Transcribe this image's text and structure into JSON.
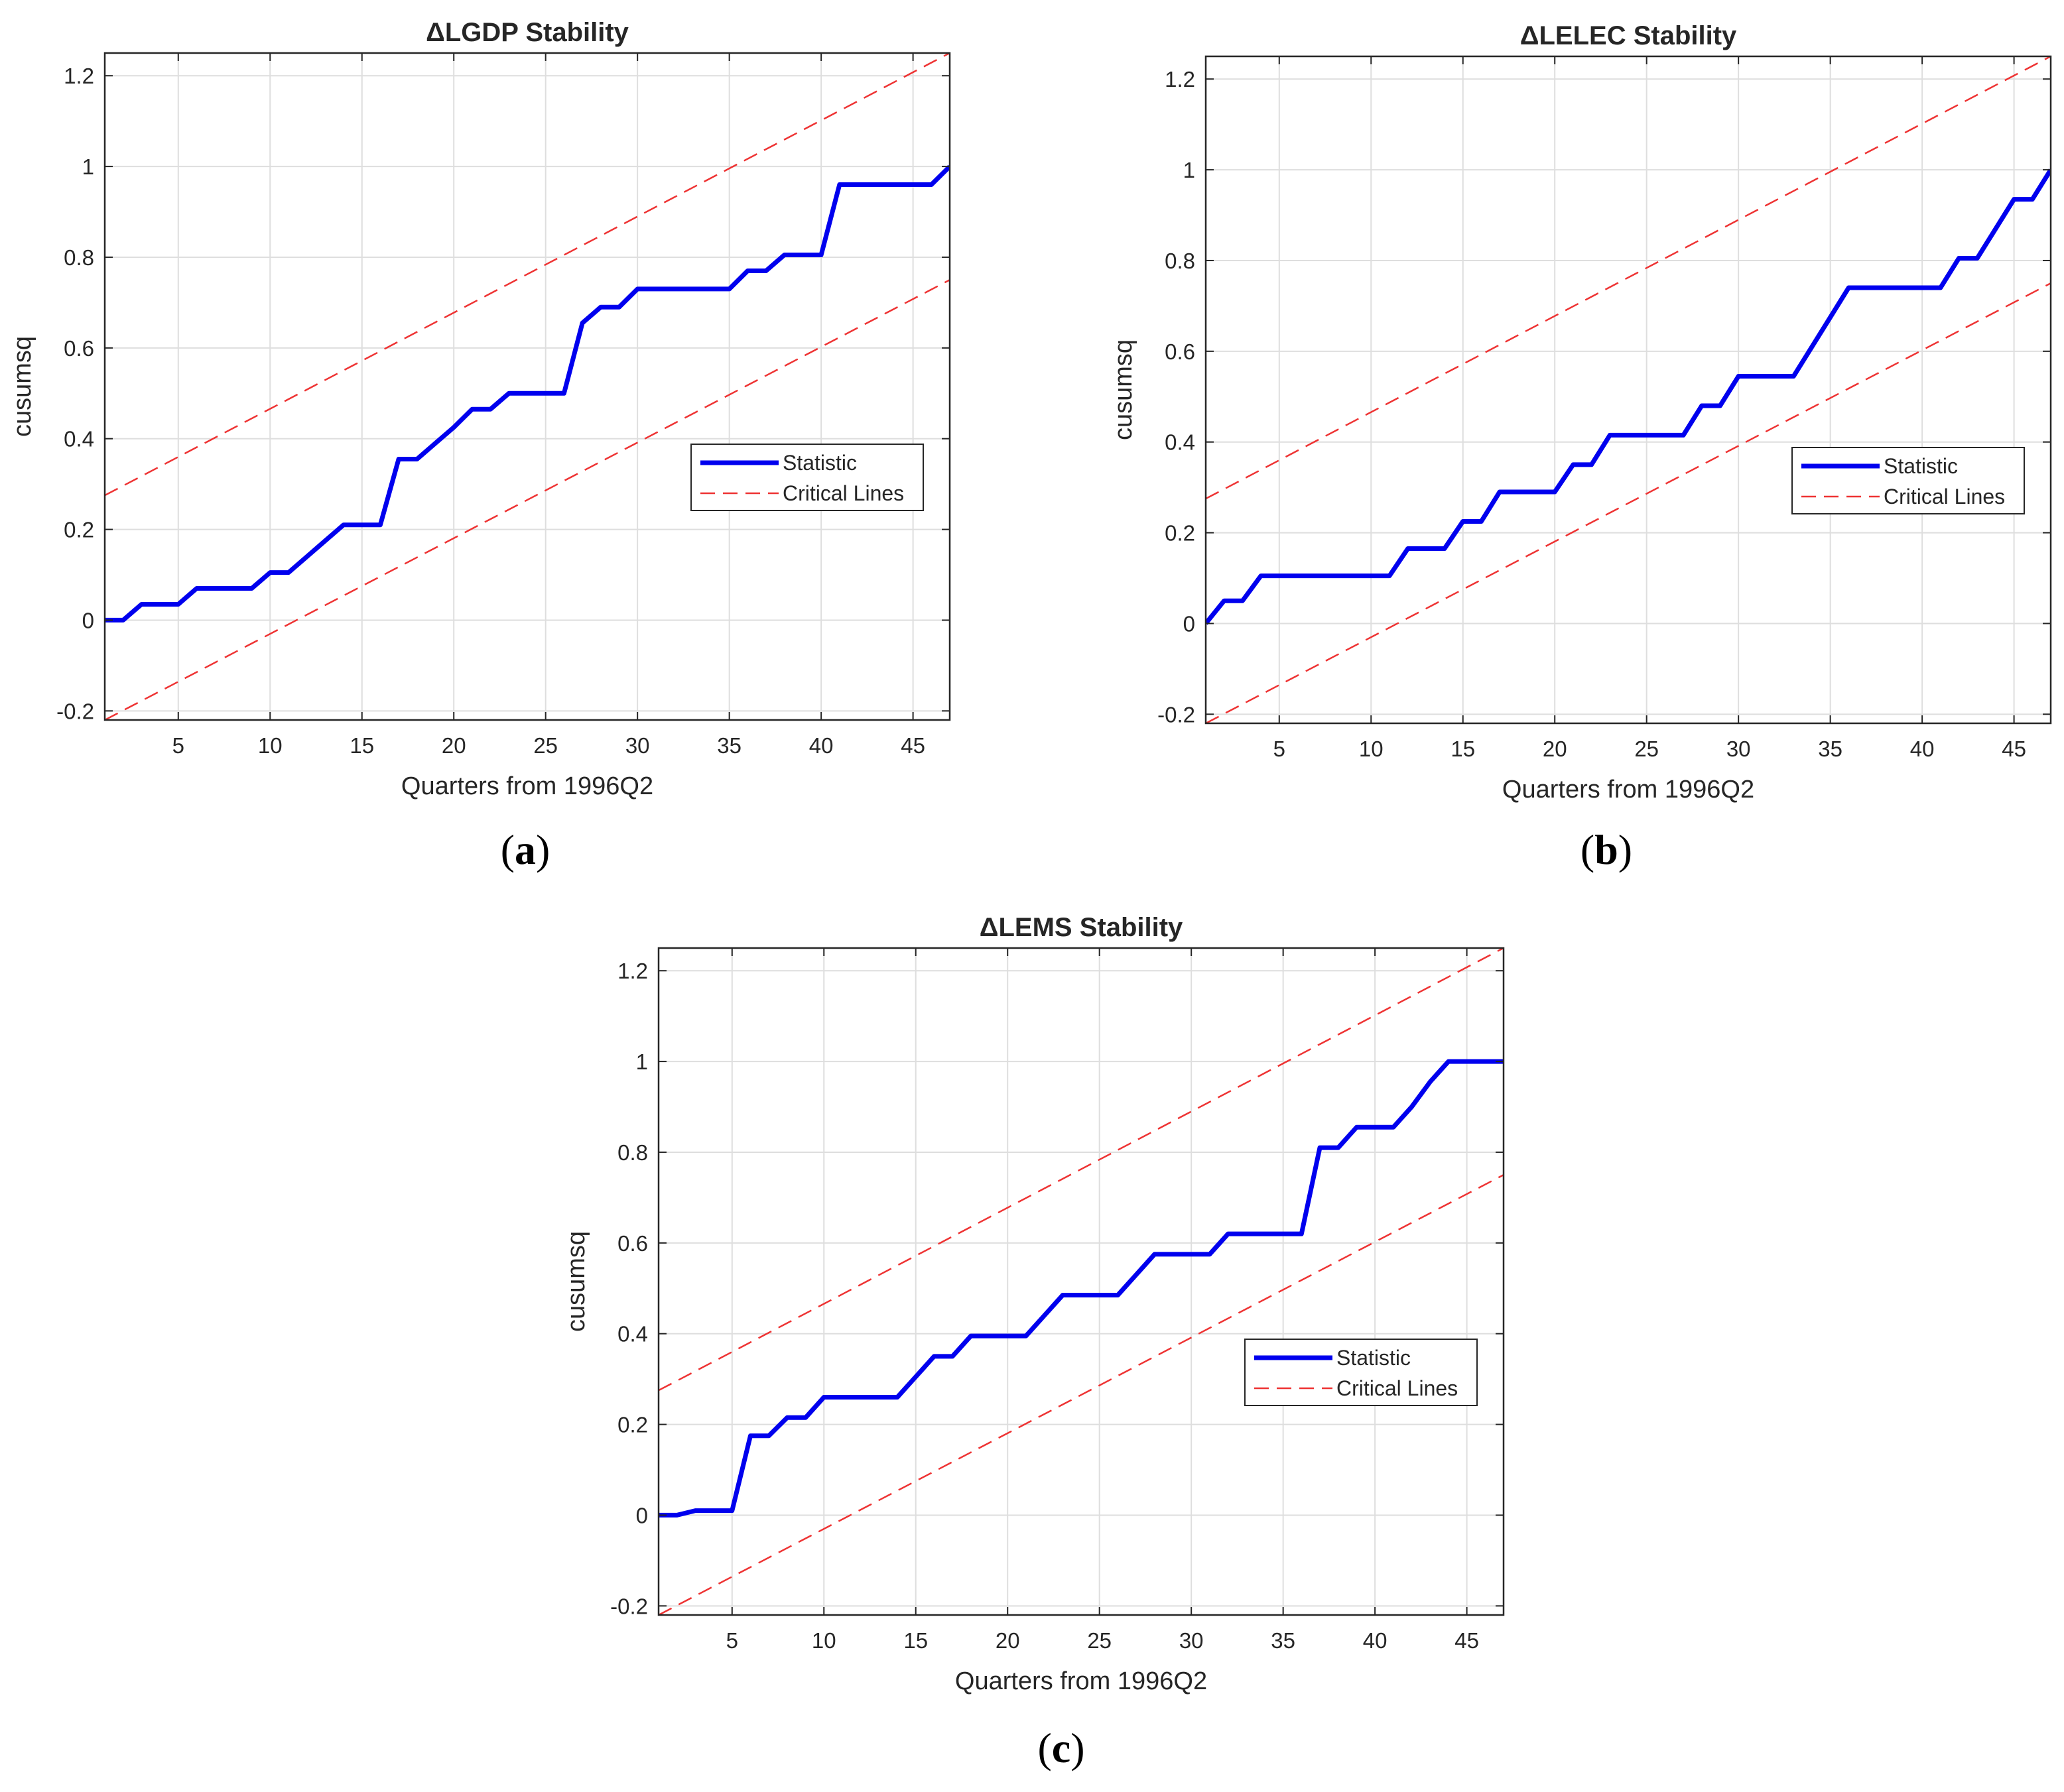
{
  "chart_data": [
    {
      "type": "line",
      "panel": "a",
      "title": "ΔLGDP Stability",
      "xlabel": "Quarters from 1996Q2",
      "ylabel": "cusumsq",
      "xlim": [
        1,
        47
      ],
      "ylim": [
        -0.22,
        1.25
      ],
      "xticks": [
        5,
        10,
        15,
        20,
        25,
        30,
        35,
        40,
        45
      ],
      "yticks": [
        -0.2,
        0,
        0.2,
        0.4,
        0.6,
        0.8,
        1,
        1.2
      ],
      "grid": true,
      "legend_position": "right",
      "series": [
        {
          "name": "Statistic",
          "style": "solid",
          "color": "#0000ee",
          "x": [
            1,
            2,
            3,
            4,
            5,
            6,
            7,
            8,
            9,
            10,
            11,
            12,
            13,
            14,
            15,
            16,
            17,
            18,
            19,
            20,
            21,
            22,
            23,
            24,
            25,
            26,
            27,
            28,
            29,
            30,
            31,
            32,
            33,
            34,
            35,
            36,
            37,
            38,
            39,
            40,
            41,
            42,
            43,
            44,
            45,
            46,
            47
          ],
          "values": [
            0,
            0,
            0.035,
            0.035,
            0.035,
            0.07,
            0.07,
            0.07,
            0.07,
            0.105,
            0.105,
            0.14,
            0.175,
            0.21,
            0.21,
            0.21,
            0.355,
            0.355,
            0.39,
            0.425,
            0.465,
            0.465,
            0.5,
            0.5,
            0.5,
            0.5,
            0.655,
            0.69,
            0.69,
            0.73,
            0.73,
            0.73,
            0.73,
            0.73,
            0.73,
            0.77,
            0.77,
            0.805,
            0.805,
            0.805,
            0.96,
            0.96,
            0.96,
            0.96,
            0.96,
            0.96,
            1.0
          ]
        },
        {
          "name": "Critical Lines",
          "style": "dashed",
          "color": "#ee3333",
          "x": [
            1,
            47
          ],
          "values": [
            0.275,
            1.25
          ]
        },
        {
          "name": "Critical Lines (lower)",
          "style": "dashed",
          "color": "#ee3333",
          "x": [
            1,
            47
          ],
          "values": [
            -0.22,
            0.75
          ]
        }
      ]
    },
    {
      "type": "line",
      "panel": "b",
      "title": "ΔLELEC Stability",
      "xlabel": "Quarters from 1996Q2",
      "ylabel": "cusumsq",
      "xlim": [
        1,
        47
      ],
      "ylim": [
        -0.22,
        1.25
      ],
      "xticks": [
        5,
        10,
        15,
        20,
        25,
        30,
        35,
        40,
        45
      ],
      "yticks": [
        -0.2,
        0,
        0.2,
        0.4,
        0.6,
        0.8,
        1,
        1.2
      ],
      "grid": true,
      "legend_position": "right",
      "series": [
        {
          "name": "Statistic",
          "style": "solid",
          "color": "#0000ee",
          "x": [
            1,
            2,
            3,
            4,
            5,
            6,
            7,
            8,
            9,
            10,
            11,
            12,
            13,
            14,
            15,
            16,
            17,
            18,
            19,
            20,
            21,
            22,
            23,
            24,
            25,
            26,
            27,
            28,
            29,
            30,
            31,
            32,
            33,
            34,
            35,
            36,
            37,
            38,
            39,
            40,
            41,
            42,
            43,
            44,
            45,
            46,
            47
          ],
          "values": [
            0,
            0.05,
            0.05,
            0.105,
            0.105,
            0.105,
            0.105,
            0.105,
            0.105,
            0.105,
            0.105,
            0.165,
            0.165,
            0.165,
            0.225,
            0.225,
            0.29,
            0.29,
            0.29,
            0.29,
            0.35,
            0.35,
            0.415,
            0.415,
            0.415,
            0.415,
            0.415,
            0.48,
            0.48,
            0.545,
            0.545,
            0.545,
            0.545,
            0.61,
            0.675,
            0.74,
            0.74,
            0.74,
            0.74,
            0.74,
            0.74,
            0.805,
            0.805,
            0.87,
            0.935,
            0.935,
            1.0
          ]
        },
        {
          "name": "Critical Lines",
          "style": "dashed",
          "color": "#ee3333",
          "x": [
            1,
            47
          ],
          "values": [
            0.275,
            1.25
          ]
        },
        {
          "name": "Critical Lines (lower)",
          "style": "dashed",
          "color": "#ee3333",
          "x": [
            1,
            47
          ],
          "values": [
            -0.22,
            0.75
          ]
        }
      ]
    },
    {
      "type": "line",
      "panel": "c",
      "title": "ΔLEMS Stability",
      "xlabel": "Quarters from 1996Q2",
      "ylabel": "cusumsq",
      "xlim": [
        1,
        47
      ],
      "ylim": [
        -0.22,
        1.25
      ],
      "xticks": [
        5,
        10,
        15,
        20,
        25,
        30,
        35,
        40,
        45
      ],
      "yticks": [
        -0.2,
        0,
        0.2,
        0.4,
        0.6,
        0.8,
        1,
        1.2
      ],
      "grid": true,
      "legend_position": "right",
      "series": [
        {
          "name": "Statistic",
          "style": "solid",
          "color": "#0000ee",
          "x": [
            1,
            2,
            3,
            4,
            5,
            6,
            7,
            8,
            9,
            10,
            11,
            12,
            13,
            14,
            15,
            16,
            17,
            18,
            19,
            20,
            21,
            22,
            23,
            24,
            25,
            26,
            27,
            28,
            29,
            30,
            31,
            32,
            33,
            34,
            35,
            36,
            37,
            38,
            39,
            40,
            41,
            42,
            43,
            44,
            45,
            46,
            47
          ],
          "values": [
            0,
            0,
            0.01,
            0.01,
            0.01,
            0.175,
            0.175,
            0.215,
            0.215,
            0.26,
            0.26,
            0.26,
            0.26,
            0.26,
            0.305,
            0.35,
            0.35,
            0.395,
            0.395,
            0.395,
            0.395,
            0.44,
            0.485,
            0.485,
            0.485,
            0.485,
            0.53,
            0.575,
            0.575,
            0.575,
            0.575,
            0.62,
            0.62,
            0.62,
            0.62,
            0.62,
            0.81,
            0.81,
            0.855,
            0.855,
            0.855,
            0.9,
            0.955,
            1.0,
            1.0,
            1.0,
            1.0
          ]
        },
        {
          "name": "Critical Lines",
          "style": "dashed",
          "color": "#ee3333",
          "x": [
            1,
            47
          ],
          "values": [
            0.275,
            1.25
          ]
        },
        {
          "name": "Critical Lines (lower)",
          "style": "dashed",
          "color": "#ee3333",
          "x": [
            1,
            47
          ],
          "values": [
            -0.22,
            0.75
          ]
        }
      ]
    }
  ],
  "legend": {
    "statistic": "Statistic",
    "critical": "Critical Lines"
  },
  "captions": {
    "a": "a",
    "b": "b",
    "c": "c"
  }
}
